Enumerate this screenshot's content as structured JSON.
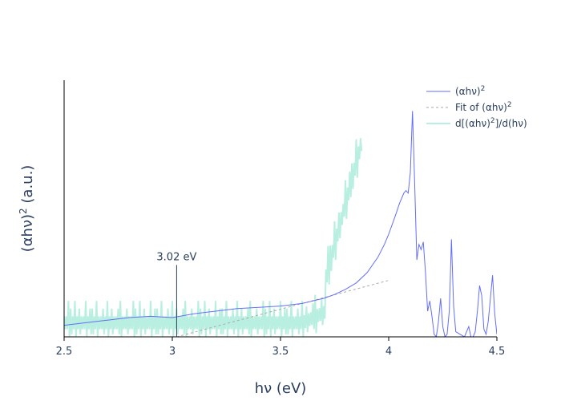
{
  "chart_data": {
    "type": "line",
    "xlabel": "hν (eV)",
    "ylabel_main": "(αhν)",
    "ylabel_sup": "2",
    "ylabel_unit": " (a.u.)",
    "xlim": [
      2.5,
      4.5
    ],
    "ylim": [
      0,
      1
    ],
    "x_ticks": [
      2.5,
      3,
      3.5,
      4,
      4.5
    ],
    "x_tick_labels": [
      "2.5",
      "3",
      "3.5",
      "4",
      "4.5"
    ],
    "grid": false,
    "legend_position": "top-right",
    "legend": [
      {
        "main": "(αhν)",
        "sup": "2",
        "tail": ""
      },
      {
        "main": "Fit of (αhν)",
        "sup": "2",
        "tail": ""
      },
      {
        "main": "d[(αhν)",
        "sup": "2",
        "tail": "]/d(hν)"
      }
    ],
    "series": [
      {
        "key": "absorbance",
        "color": "#636efa",
        "x": [
          2.5,
          2.6,
          2.7,
          2.8,
          2.9,
          3.0,
          3.1,
          3.2,
          3.3,
          3.4,
          3.5,
          3.55,
          3.6,
          3.65,
          3.7,
          3.75,
          3.8,
          3.85,
          3.9,
          3.95,
          3.98,
          4.0,
          4.03,
          4.05,
          4.07,
          4.08,
          4.09,
          4.1,
          4.11,
          4.12,
          4.13,
          4.14,
          4.15,
          4.16,
          4.17,
          4.18,
          4.19,
          4.2,
          4.21,
          4.22,
          4.23,
          4.24,
          4.25,
          4.26,
          4.27,
          4.28,
          4.285,
          4.29,
          4.3,
          4.31,
          4.33,
          4.35,
          4.36,
          4.37,
          4.38,
          4.39,
          4.4,
          4.41,
          4.42,
          4.43,
          4.44,
          4.45,
          4.46,
          4.47,
          4.48,
          4.49,
          4.5
        ],
        "y": [
          0.045,
          0.055,
          0.065,
          0.075,
          0.08,
          0.075,
          0.09,
          0.1,
          0.11,
          0.115,
          0.12,
          0.125,
          0.13,
          0.14,
          0.15,
          0.165,
          0.185,
          0.21,
          0.25,
          0.31,
          0.36,
          0.4,
          0.47,
          0.52,
          0.56,
          0.57,
          0.56,
          0.64,
          0.88,
          0.6,
          0.3,
          0.36,
          0.34,
          0.37,
          0.25,
          0.1,
          0.14,
          0.08,
          0.01,
          0.0,
          0.06,
          0.15,
          0.04,
          0.0,
          0.01,
          0.1,
          0.24,
          0.38,
          0.12,
          0.02,
          0.01,
          0.0,
          0.02,
          0.04,
          0.0,
          0.0,
          0.02,
          0.1,
          0.2,
          0.16,
          0.03,
          0.01,
          0.06,
          0.15,
          0.24,
          0.09,
          0.01
        ]
      },
      {
        "key": "fit",
        "color": "#aaaaaa",
        "x": [
          3.02,
          4.0
        ],
        "y": [
          0.0,
          0.22
        ]
      },
      {
        "key": "derivative",
        "color": "#b8efe0",
        "base": 0.05,
        "x_start": 2.5,
        "x_end": 3.87,
        "step": 0.01,
        "noise": [
          1,
          1,
          3,
          2,
          1,
          3,
          1,
          2,
          1,
          1,
          3,
          1,
          2,
          2,
          1,
          3,
          1,
          1,
          2,
          1,
          3,
          1,
          2,
          1,
          1,
          2,
          3,
          1,
          1,
          2
        ]
      }
    ],
    "annotation": {
      "text": "3.02 eV",
      "x": 3.02,
      "y_top": 0.28
    }
  }
}
